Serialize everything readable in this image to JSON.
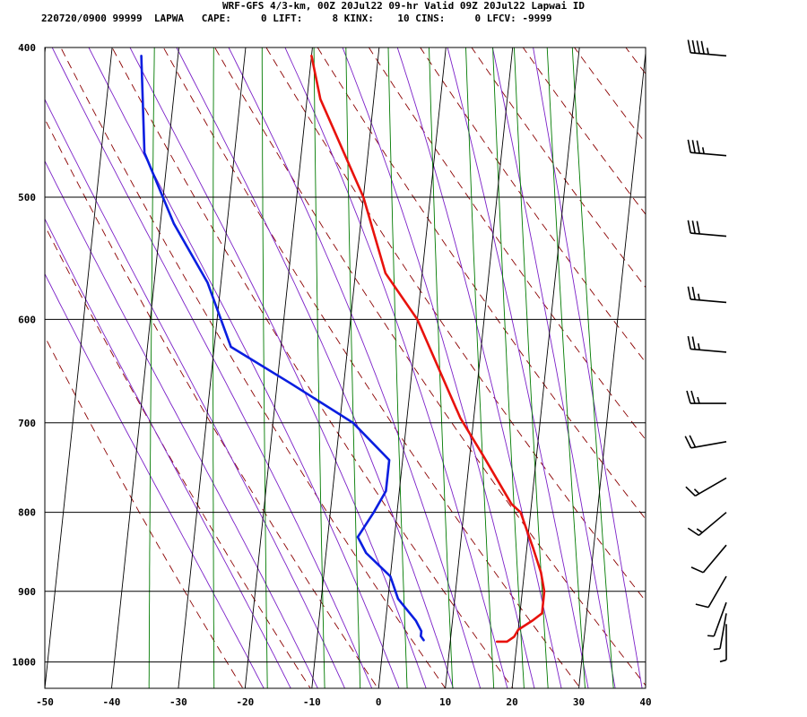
{
  "header": {
    "title": "WRF-GFS 4/3-km, 00Z 20Jul22 09-hr Valid 09Z 20Jul22 Lapwai ID",
    "info": "220720/0900 99999  LAPWA   CAPE:     0 LIFT:     8 KINX:    10 CINS:     0 LFCV: -9999"
  },
  "colors": {
    "temperature": "#e8120c",
    "dewpoint": "#0a1ee0",
    "isotherm": "#000000",
    "dry_adiabat": "#8b0000",
    "moist_adiabat": "#7b20c8",
    "mixing_ratio": "#007a00"
  },
  "chart_data": {
    "type": "line",
    "title": "",
    "xlabel": "",
    "ylabel": "",
    "x_ticks": [
      -50,
      -40,
      -30,
      -20,
      -10,
      0,
      10,
      20,
      30,
      40
    ],
    "y_ticks": [
      400,
      500,
      600,
      700,
      800,
      900,
      1000
    ],
    "xlim": [
      -50,
      40
    ],
    "ylim": [
      1040,
      400
    ],
    "y_scale": "log",
    "grid": true,
    "series": [
      {
        "key": "temperature",
        "points": [
          [
            -20,
            405
          ],
          [
            -18,
            432
          ],
          [
            -10,
            500
          ],
          [
            -5.5,
            560
          ],
          [
            0,
            600
          ],
          [
            6,
            670
          ],
          [
            8,
            695
          ],
          [
            12,
            735
          ],
          [
            17,
            790
          ],
          [
            18.5,
            800
          ],
          [
            21,
            845
          ],
          [
            22.5,
            875
          ],
          [
            23.3,
            900
          ],
          [
            23.3,
            930
          ],
          [
            22,
            940
          ],
          [
            20,
            953
          ],
          [
            19.5,
            963
          ],
          [
            18.5,
            970
          ],
          [
            17,
            970
          ]
        ]
      },
      {
        "key": "dewpoint",
        "points": [
          [
            -45.5,
            405
          ],
          [
            -43.5,
            468
          ],
          [
            -38,
            520
          ],
          [
            -32,
            568
          ],
          [
            -27.5,
            625
          ],
          [
            -18,
            660
          ],
          [
            -8,
            700
          ],
          [
            -2,
            740
          ],
          [
            -2,
            775
          ],
          [
            -3.5,
            800
          ],
          [
            -5.5,
            830
          ],
          [
            -4,
            850
          ],
          [
            0,
            880
          ],
          [
            1.5,
            910
          ],
          [
            4.5,
            940
          ],
          [
            5.5,
            955
          ],
          [
            5.5,
            962
          ],
          [
            6,
            968
          ]
        ]
      }
    ],
    "winds_pressure_levels": [
      405,
      470,
      530,
      585,
      630,
      680,
      720,
      760,
      800,
      840,
      880,
      915,
      930,
      945
    ],
    "winds_knots": [
      45,
      35,
      30,
      25,
      25,
      25,
      20,
      15,
      15,
      10,
      8,
      5,
      5,
      5
    ],
    "winds_direction_deg": [
      275,
      275,
      275,
      275,
      275,
      270,
      260,
      240,
      230,
      220,
      210,
      200,
      190,
      180
    ]
  }
}
